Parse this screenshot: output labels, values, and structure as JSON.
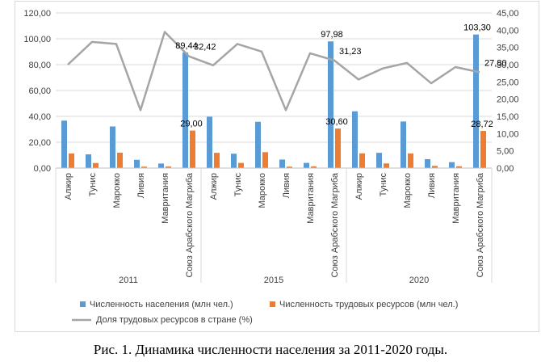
{
  "caption": "Рис. 1. Динамика численности населения за 2011-2020 годы.",
  "chart_data": {
    "type": "bar",
    "groups": [
      {
        "label": "2011",
        "categories": [
          "Алжир",
          "Тунис",
          "Марокко",
          "Ливия",
          "Мавритания",
          "Союз Арабского Магриба"
        ]
      },
      {
        "label": "2015",
        "categories": [
          "Алжир",
          "Тунис",
          "Марокко",
          "Ливия",
          "Мавритания",
          "Союз Арабского Магриба"
        ]
      },
      {
        "label": "2020",
        "categories": [
          "Алжир",
          "Тунис",
          "Марокко",
          "Ливия",
          "Мавритания",
          "Союз Арабского Магриба"
        ]
      }
    ],
    "series": [
      {
        "name": "Численность населения (млн чел.)",
        "kind": "bar",
        "axis": "left",
        "color": "#5b9bd5",
        "values": [
          36.7,
          10.6,
          32.2,
          6.4,
          3.5,
          89.44,
          39.7,
          11.1,
          35.8,
          6.6,
          4.0,
          97.98,
          43.9,
          11.8,
          36.0,
          6.9,
          4.6,
          103.3
        ],
        "labels": {
          "5": "89,44",
          "11": "97,98",
          "17": "103,30"
        }
      },
      {
        "name": "Численность трудовых ресурсов (млн чел.)",
        "kind": "bar",
        "axis": "left",
        "color": "#ed7d31",
        "values": [
          11.3,
          3.9,
          11.9,
          1.1,
          1.2,
          29.0,
          11.8,
          4.0,
          12.3,
          1.1,
          1.3,
          30.6,
          11.4,
          3.6,
          11.3,
          1.7,
          1.4,
          28.72
        ],
        "labels": {
          "5": "29,00",
          "11": "30,60",
          "17": "28,72"
        }
      },
      {
        "name": "Доля трудовых ресурсов в стране (%)",
        "kind": "line",
        "axis": "right",
        "color": "#a5a5a5",
        "values": [
          30.0,
          36.6,
          36.0,
          16.8,
          39.5,
          32.42,
          29.8,
          36.0,
          33.8,
          16.8,
          33.3,
          31.23,
          25.7,
          28.9,
          30.5,
          24.6,
          29.3,
          27.8
        ],
        "labels": {
          "5": "32,42",
          "11": "31,23",
          "17": "27,80"
        }
      }
    ],
    "y_left": {
      "min": 0,
      "max": 120,
      "step": 20,
      "tick_labels": [
        "0,00",
        "20,00",
        "40,00",
        "60,00",
        "80,00",
        "100,00",
        "120,00"
      ]
    },
    "y_right": {
      "min": 0,
      "max": 45,
      "step": 5,
      "tick_labels": [
        "0,00",
        "5,00",
        "10,00",
        "15,00",
        "20,00",
        "25,00",
        "30,00",
        "35,00",
        "40,00",
        "45,00"
      ]
    },
    "grid": true,
    "legend_position": "bottom"
  }
}
